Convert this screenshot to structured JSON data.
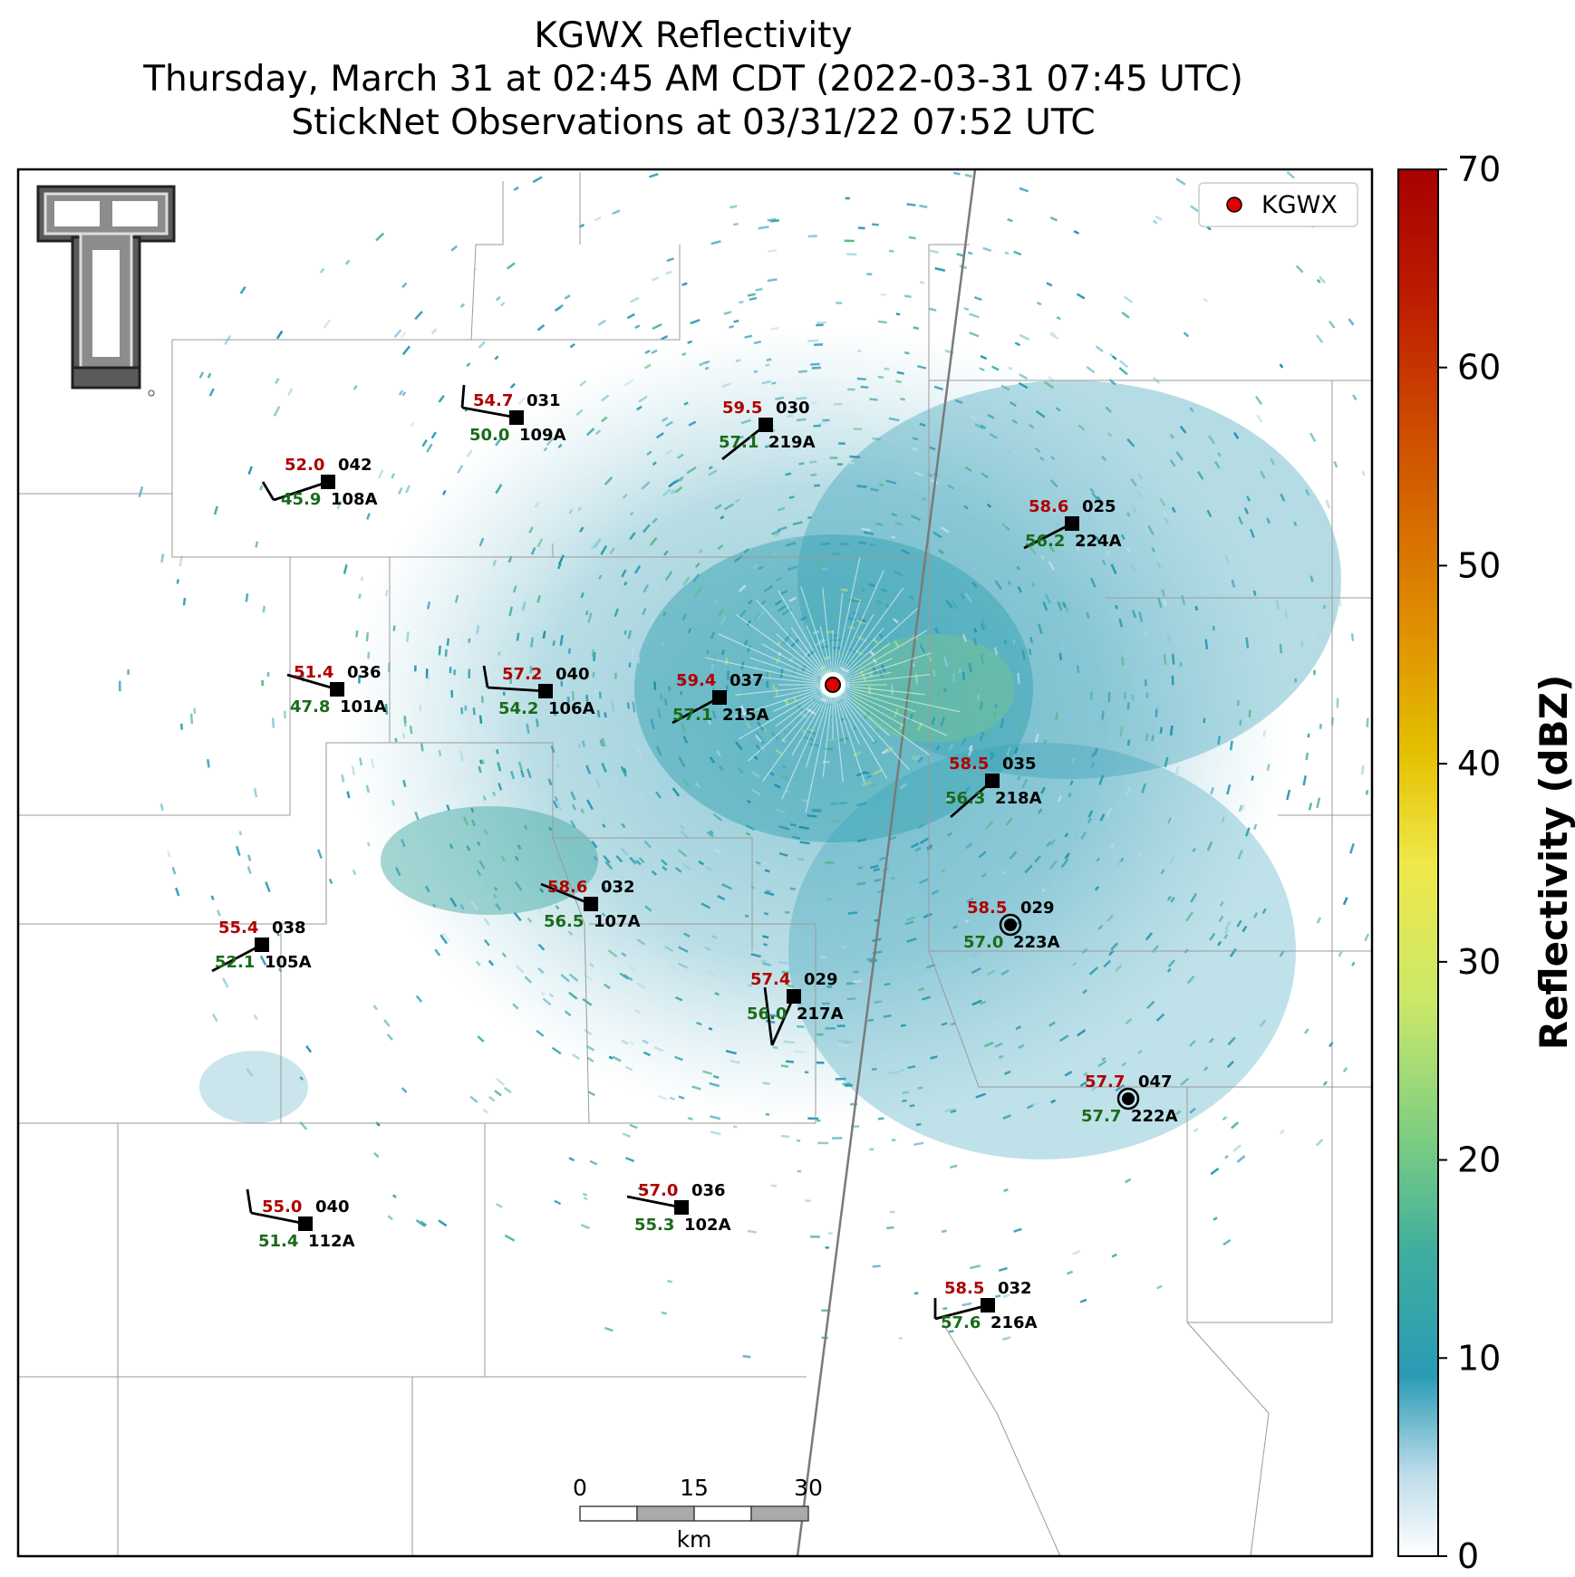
{
  "title": {
    "line1": "KGWX Reflectivity",
    "line2": "Thursday, March 31 at 02:45 AM CDT (2022-03-31 07:45 UTC)",
    "line3": "StickNet Observations at 03/31/22 07:52 UTC"
  },
  "legend": {
    "radar_label": "KGWX",
    "marker_color": "#e00000"
  },
  "colorbar": {
    "label": "Reflectivity (dBZ)",
    "ticks": [
      "0",
      "10",
      "20",
      "30",
      "40",
      "50",
      "60",
      "70"
    ],
    "min": 0,
    "max": 70,
    "colors": [
      "#ffffff",
      "#2a9bb5",
      "#56b98c",
      "#a7e27a",
      "#e8ee4a",
      "#e1b400",
      "#d86e00",
      "#b00000"
    ]
  },
  "scalebar": {
    "ticks": [
      "0",
      "15",
      "30"
    ],
    "unit": "km"
  },
  "logo": {
    "name": "Texas Tech Double T"
  },
  "stations": [
    {
      "id": "109A",
      "temp": "54.7",
      "dew": "50.0",
      "pressure": "031"
    },
    {
      "id": "219A",
      "temp": "59.5",
      "dew": "57.1",
      "pressure": "030"
    },
    {
      "id": "108A",
      "temp": "52.0",
      "dew": "45.9",
      "pressure": "042"
    },
    {
      "id": "224A",
      "temp": "58.6",
      "dew": "56.2",
      "pressure": "025"
    },
    {
      "id": "101A",
      "temp": "51.4",
      "dew": "47.8",
      "pressure": "036"
    },
    {
      "id": "106A",
      "temp": "57.2",
      "dew": "54.2",
      "pressure": "040"
    },
    {
      "id": "215A",
      "temp": "59.4",
      "dew": "57.1",
      "pressure": "037"
    },
    {
      "id": "218A",
      "temp": "58.5",
      "dew": "56.3",
      "pressure": "035"
    },
    {
      "id": "107A",
      "temp": "58.6",
      "dew": "56.5",
      "pressure": "032"
    },
    {
      "id": "105A",
      "temp": "55.4",
      "dew": "52.1",
      "pressure": "038"
    },
    {
      "id": "223A",
      "temp": "58.5",
      "dew": "57.0",
      "pressure": "029"
    },
    {
      "id": "217A",
      "temp": "57.4",
      "dew": "56.0",
      "pressure": "029"
    },
    {
      "id": "222A",
      "temp": "57.7",
      "dew": "57.7",
      "pressure": "047"
    },
    {
      "id": "112A",
      "temp": "55.0",
      "dew": "51.4",
      "pressure": "040"
    },
    {
      "id": "102A",
      "temp": "57.0",
      "dew": "55.3",
      "pressure": "036"
    },
    {
      "id": "216A",
      "temp": "58.5",
      "dew": "57.6",
      "pressure": "032"
    }
  ]
}
